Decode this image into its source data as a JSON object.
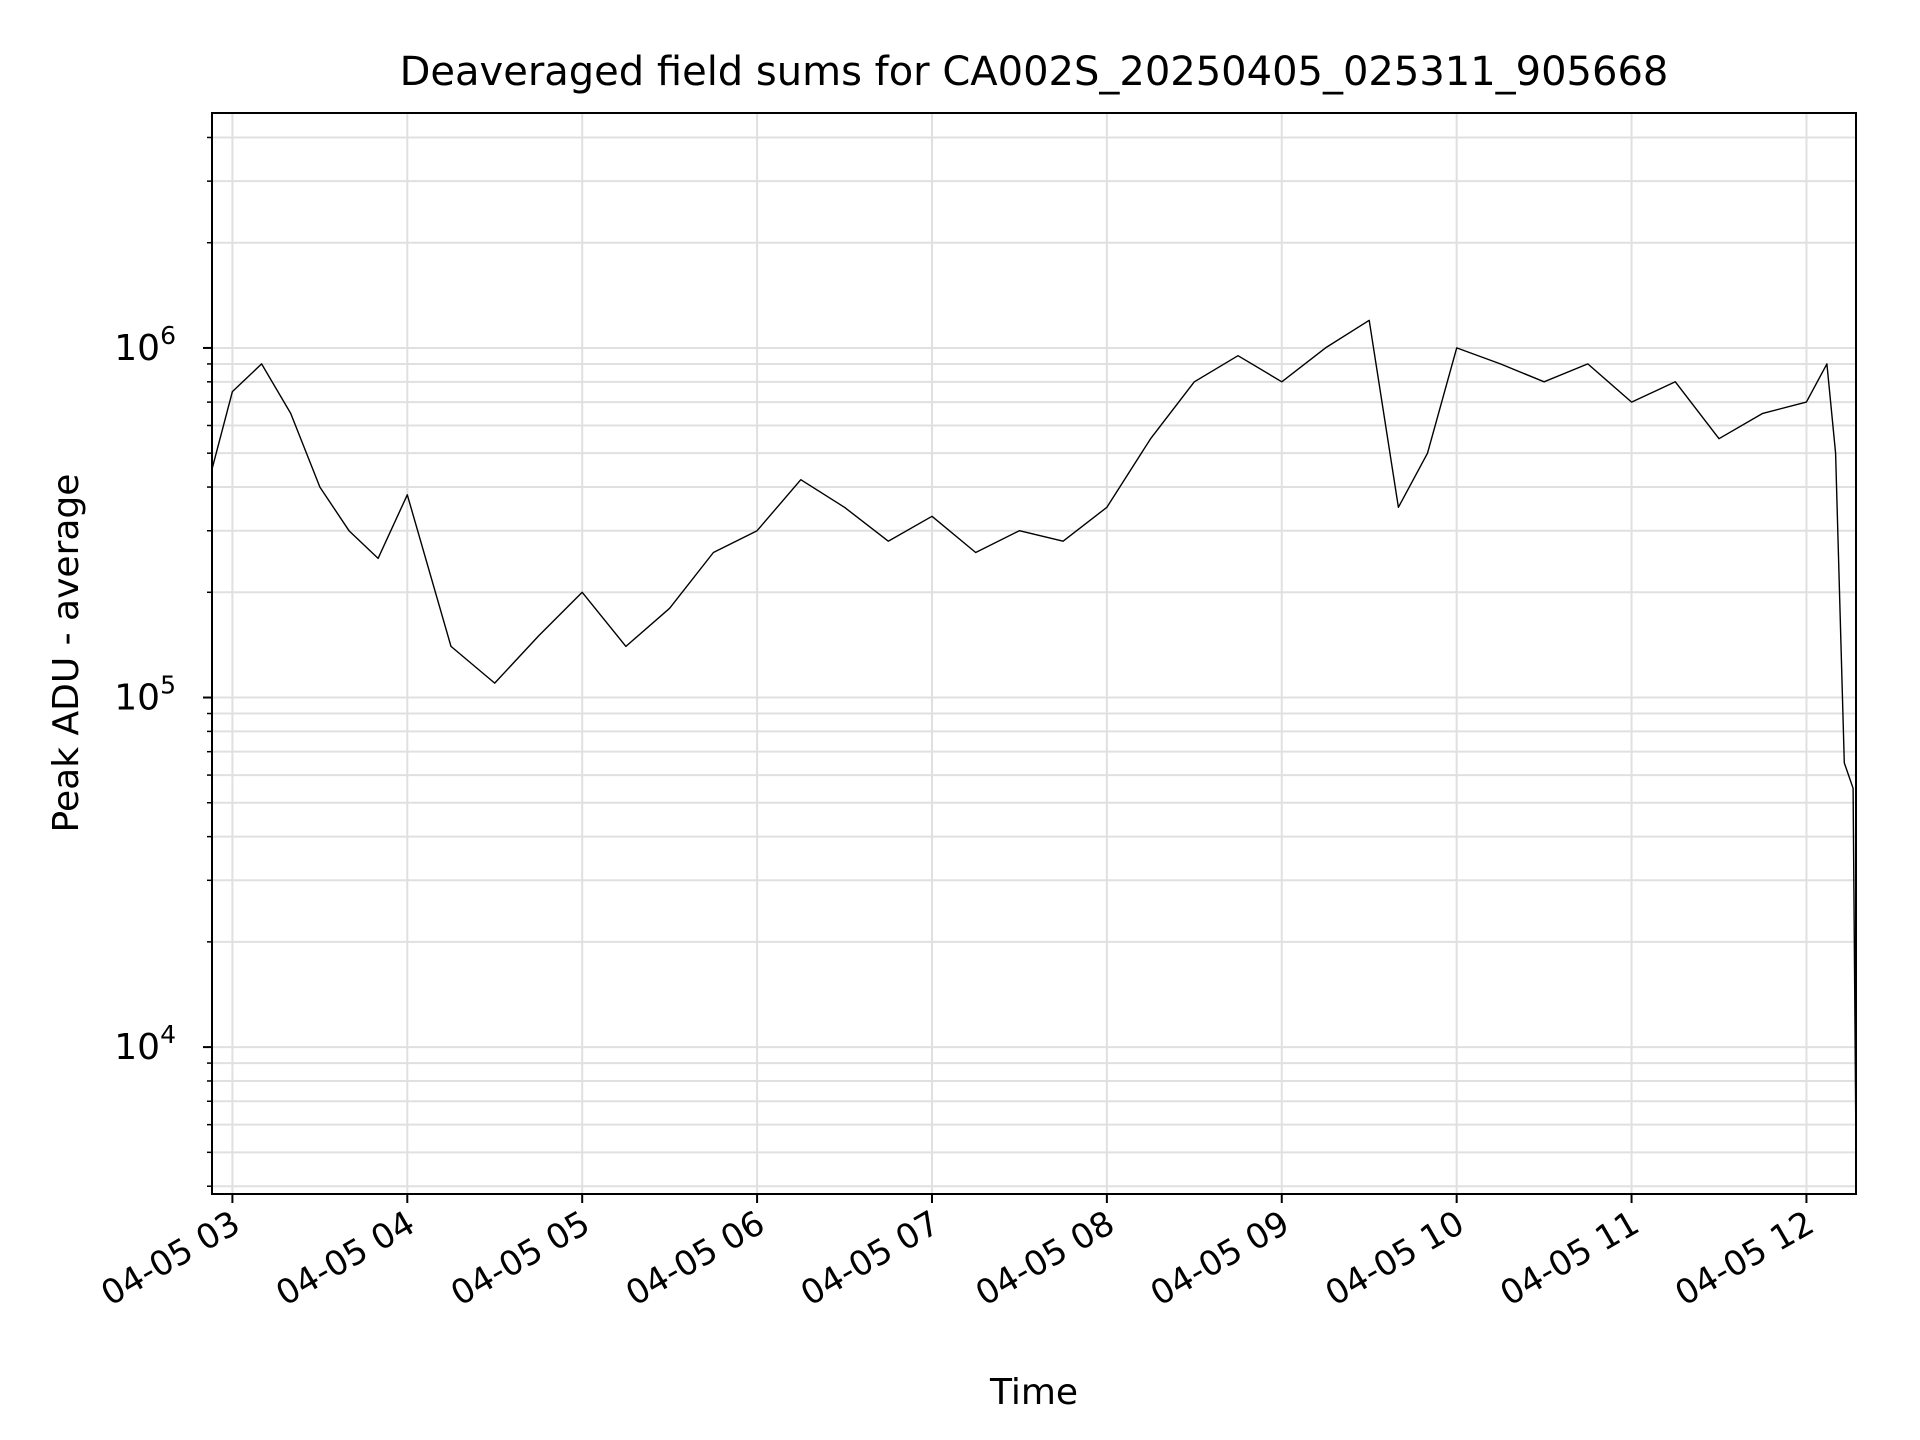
{
  "chart_data": {
    "type": "line",
    "title": "Deaveraged field sums for CA002S_20250405_025311_905668",
    "xlabel": "Time",
    "ylabel": "Peak ADU - average",
    "yscale": "log",
    "ylim": [
      3800,
      4700000
    ],
    "xlim": [
      "2025-04-05 02:53:00",
      "2025-04-05 12:17:00"
    ],
    "grid": true,
    "line_color": "#000000",
    "x_tick_labels": [
      "04-05 03",
      "04-05 04",
      "04-05 05",
      "04-05 06",
      "04-05 07",
      "04-05 08",
      "04-05 09",
      "04-05 10",
      "04-05 11",
      "04-05 12"
    ],
    "y_tick_labels": [
      {
        "base": "10",
        "exp": "4",
        "value": 10000
      },
      {
        "base": "10",
        "exp": "5",
        "value": 100000
      },
      {
        "base": "10",
        "exp": "6",
        "value": 1000000
      }
    ],
    "series": [
      {
        "x": [
          "2025-04-05 02:53",
          "2025-04-05 03:00",
          "2025-04-05 03:10",
          "2025-04-05 03:20",
          "2025-04-05 03:30",
          "2025-04-05 03:40",
          "2025-04-05 03:50",
          "2025-04-05 04:00",
          "2025-04-05 04:15",
          "2025-04-05 04:30",
          "2025-04-05 04:45",
          "2025-04-05 05:00",
          "2025-04-05 05:15",
          "2025-04-05 05:30",
          "2025-04-05 05:45",
          "2025-04-05 06:00",
          "2025-04-05 06:15",
          "2025-04-05 06:30",
          "2025-04-05 06:45",
          "2025-04-05 07:00",
          "2025-04-05 07:15",
          "2025-04-05 07:30",
          "2025-04-05 07:45",
          "2025-04-05 08:00",
          "2025-04-05 08:15",
          "2025-04-05 08:30",
          "2025-04-05 08:45",
          "2025-04-05 09:00",
          "2025-04-05 09:15",
          "2025-04-05 09:30",
          "2025-04-05 09:40",
          "2025-04-05 09:50",
          "2025-04-05 10:00",
          "2025-04-05 10:15",
          "2025-04-05 10:30",
          "2025-04-05 10:45",
          "2025-04-05 11:00",
          "2025-04-05 11:15",
          "2025-04-05 11:30",
          "2025-04-05 11:45",
          "2025-04-05 12:00",
          "2025-04-05 12:07",
          "2025-04-05 12:10",
          "2025-04-05 12:13",
          "2025-04-05 12:16",
          "2025-04-05 12:17"
        ],
        "values": [
          450000,
          750000,
          900000,
          650000,
          400000,
          300000,
          250000,
          380000,
          140000,
          110000,
          150000,
          200000,
          140000,
          180000,
          260000,
          300000,
          420000,
          350000,
          280000,
          330000,
          260000,
          300000,
          280000,
          350000,
          550000,
          800000,
          950000,
          800000,
          1000000,
          1200000,
          350000,
          500000,
          1000000,
          900000,
          800000,
          900000,
          700000,
          800000,
          550000,
          650000,
          700000,
          900000,
          500000,
          65000,
          55000,
          5000
        ]
      }
    ]
  }
}
